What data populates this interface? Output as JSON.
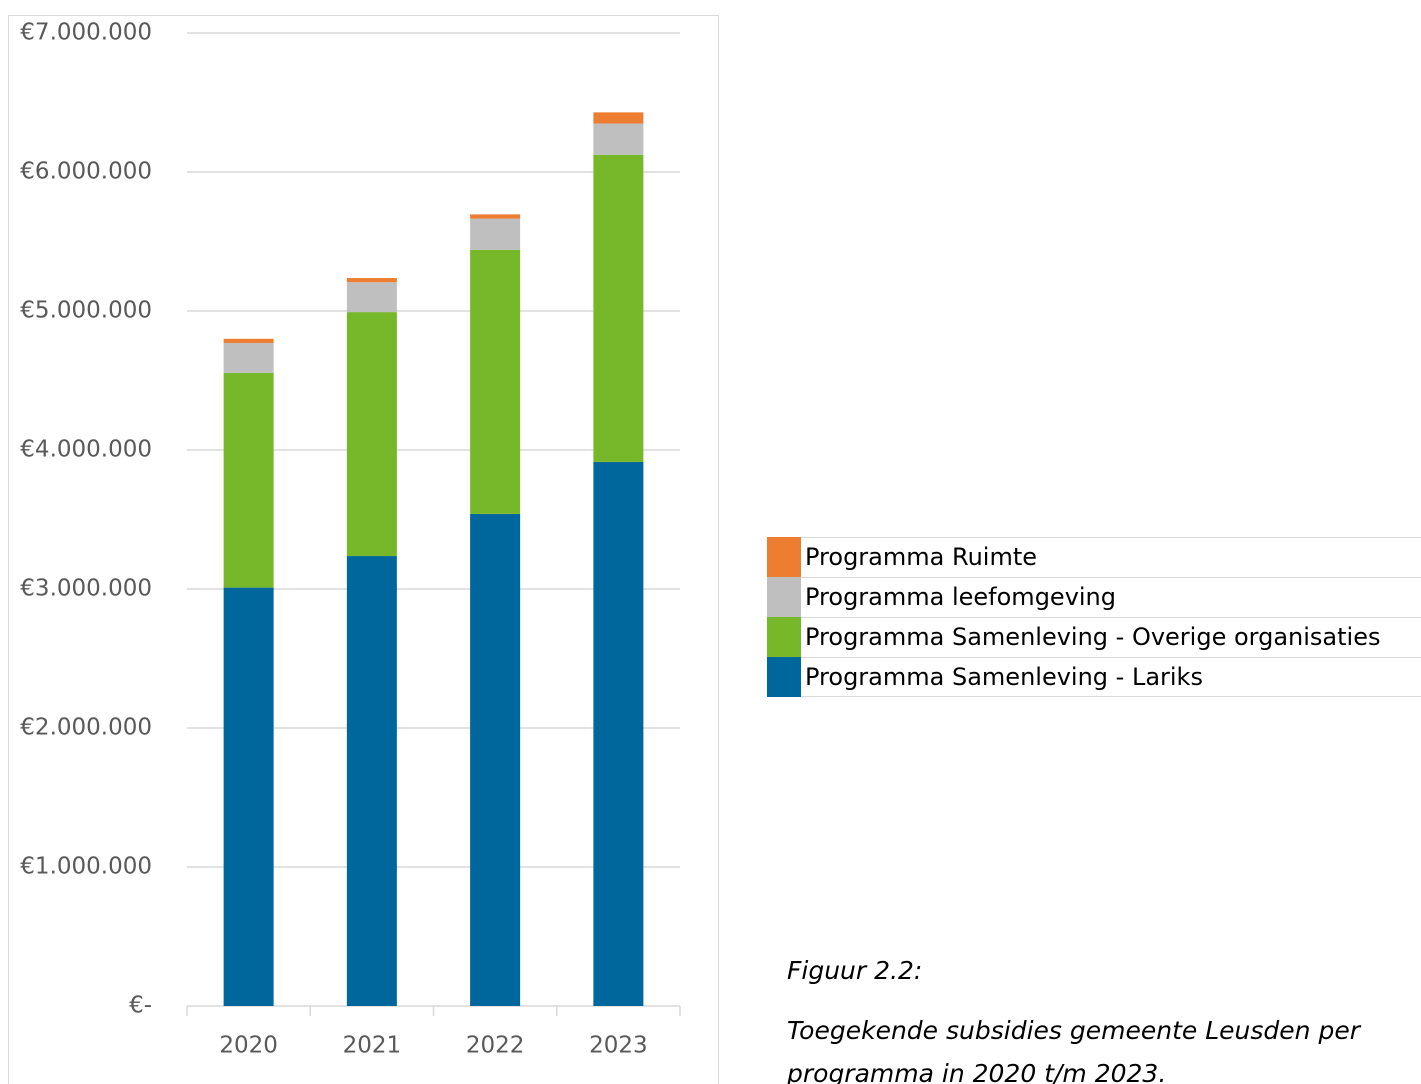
{
  "chart_data": {
    "type": "stacked_bar",
    "categories": [
      "2020",
      "2021",
      "2022",
      "2023"
    ],
    "series": [
      {
        "name": "Programma Samenleving - Lariks",
        "color": "#00679c",
        "values": [
          3010000,
          3237000,
          3540000,
          3914000
        ]
      },
      {
        "name": "Programma Samenleving - Overige organisaties",
        "color": "#77b82a",
        "values": [
          1545000,
          1755000,
          1900000,
          2210000
        ]
      },
      {
        "name": "Programma leefomgeving",
        "color": "#bfbfbf",
        "values": [
          215000,
          215000,
          225000,
          225000
        ]
      },
      {
        "name": "Programma Ruimte",
        "color": "#ed7d31",
        "values": [
          30000,
          30000,
          30000,
          80000
        ]
      }
    ],
    "ylim": [
      0,
      7000000
    ],
    "yticks": [
      {
        "value": 0,
        "label": "€-"
      },
      {
        "value": 1000000,
        "label": "€1.000.000"
      },
      {
        "value": 2000000,
        "label": "€2.000.000"
      },
      {
        "value": 3000000,
        "label": "€3.000.000"
      },
      {
        "value": 4000000,
        "label": "€4.000.000"
      },
      {
        "value": 5000000,
        "label": "€5.000.000"
      },
      {
        "value": 6000000,
        "label": "€6.000.000"
      },
      {
        "value": 7000000,
        "label": "€7.000.000"
      }
    ],
    "grid": true,
    "legend": "right"
  },
  "caption": {
    "label": "Figuur 2.2:",
    "lines": [
      "Toegekende subsidies gemeente Leusden per",
      "programma in 2020 t/m 2023."
    ]
  }
}
